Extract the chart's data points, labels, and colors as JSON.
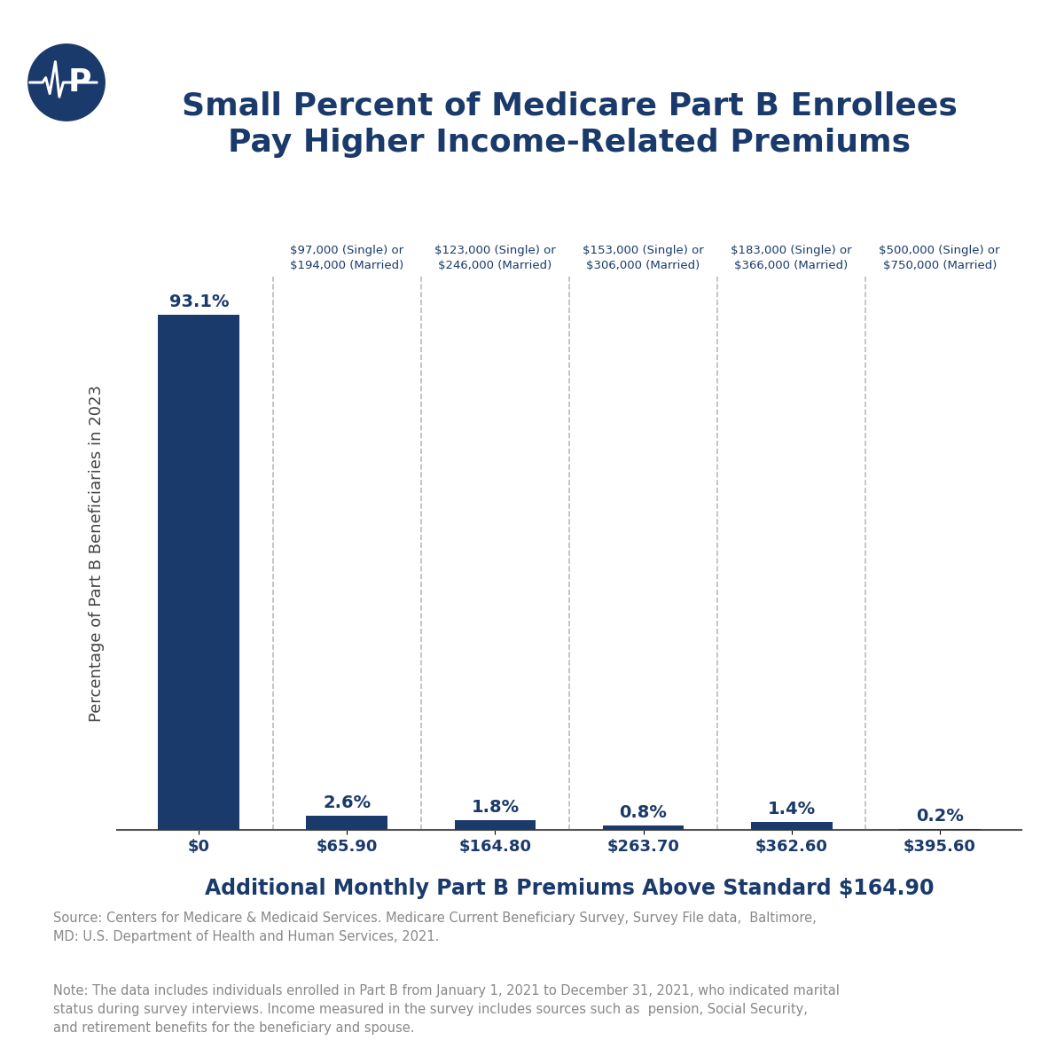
{
  "title_line1": "Small Percent of Medicare Part B Enrollees",
  "title_line2": "Pay Higher Income-Related Premiums",
  "title_color": "#1a3a6b",
  "title_fontsize": 26,
  "bar_color": "#1a3a6b",
  "background_color": "#ffffff",
  "categories": [
    "$0",
    "$65.90",
    "$164.80",
    "$263.70",
    "$362.60",
    "$395.60"
  ],
  "values": [
    93.1,
    2.6,
    1.8,
    0.8,
    1.4,
    0.2
  ],
  "value_labels": [
    "93.1%",
    "2.6%",
    "1.8%",
    "0.8%",
    "1.4%",
    "0.2%"
  ],
  "income_labels": [
    "$97,000 (Single) or\n$194,000 (Married)",
    "$123,000 (Single) or\n$246,000 (Married)",
    "$153,000 (Single) or\n$306,000 (Married)",
    "$183,000 (Single) or\n$366,000 (Married)",
    "$500,000 (Single) or\n$750,000 (Married)"
  ],
  "xlabel": "Additional Monthly Part B Premiums Above Standard $164.90",
  "ylabel": "Percentage of Part B Beneficiaries in 2023",
  "xlabel_fontsize": 17,
  "ylabel_fontsize": 13,
  "source_text": "Source: Centers for Medicare & Medicaid Services. Medicare Current Beneficiary Survey, Survey File data,  Baltimore,\nMD: U.S. Department of Health and Human Services, 2021.",
  "note_text": "Note: The data includes individuals enrolled in Part B from January 1, 2021 to December 31, 2021, who indicated marital\nstatus during survey interviews. Income measured in the survey includes sources such as  pension, Social Security,\nand retirement benefits for the beneficiary and spouse.",
  "ylim": [
    0,
    100
  ],
  "logo_color": "#1a3a6b",
  "grid_color": "#bbbbbb",
  "tick_label_color": "#1a3a6b",
  "income_label_color": "#1a3a6b",
  "footnote_color": "#888888"
}
